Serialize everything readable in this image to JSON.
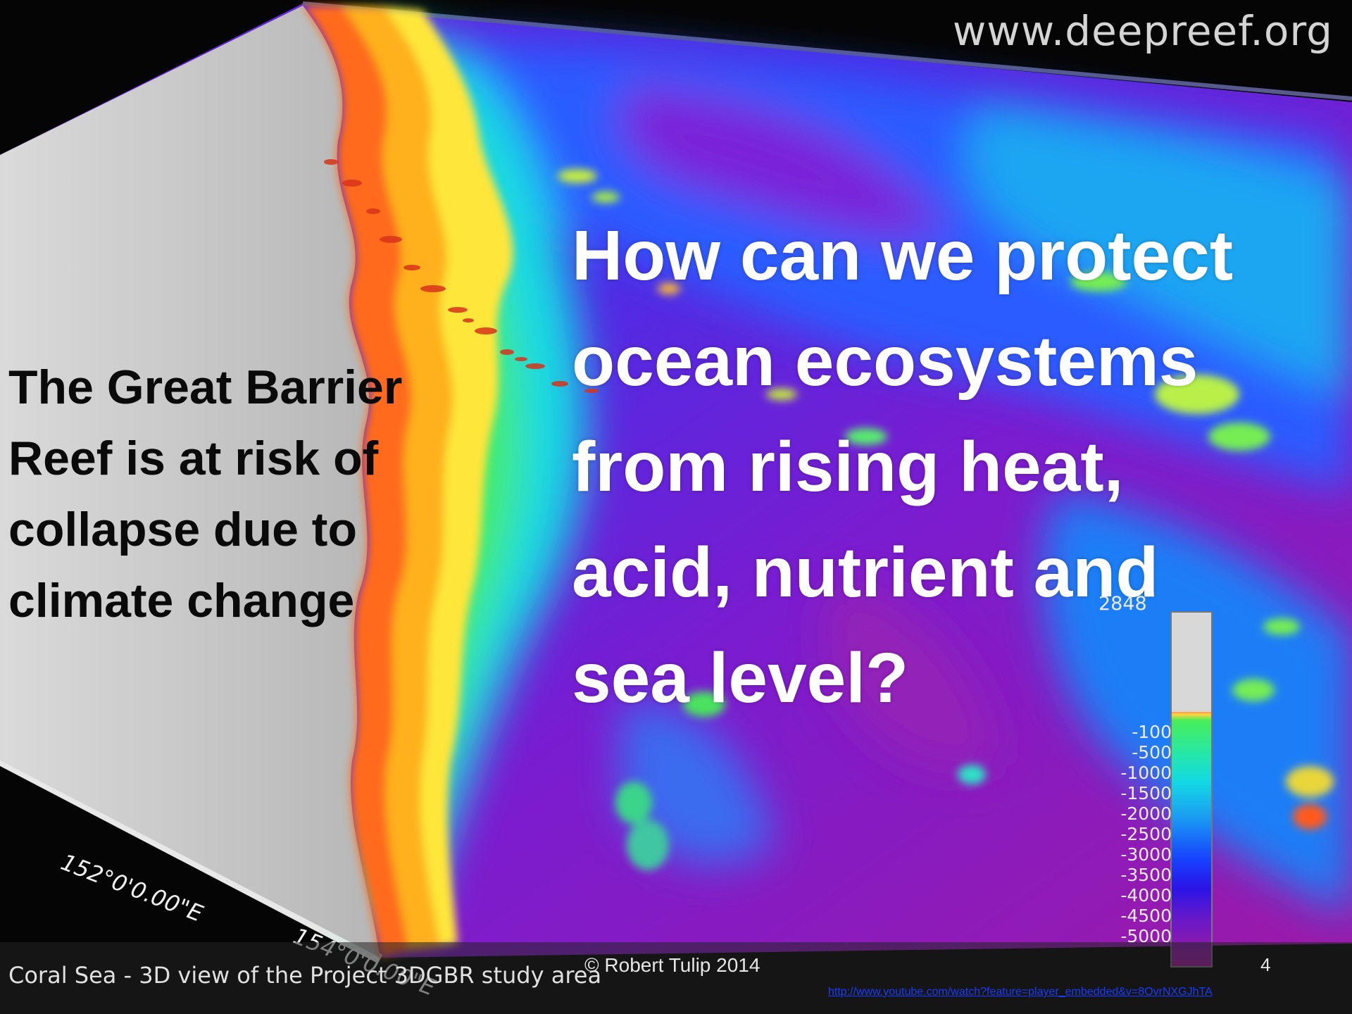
{
  "slide": {
    "watermark": "www.deepreef.org",
    "side_text_lines": [
      "The Great Barrier",
      "Reef is at risk of",
      "collapse due to",
      "climate change"
    ],
    "question_lines": [
      "How can we protect",
      "ocean ecosystems",
      "from rising heat,",
      "acid, nutrient and",
      "sea level?"
    ],
    "map": {
      "caption": "Coral Sea - 3D view of the Project 3DGBR study area",
      "longitude_labels": [
        "152°0'0.00\"E",
        "154°0'0.00\"E"
      ],
      "legend": {
        "top_value": "2848",
        "tick_labels": [
          "-100",
          "-500",
          "-1000",
          "-1500",
          "-2000",
          "-2500",
          "-3000",
          "-3500",
          "-4000",
          "-4500",
          "-5000"
        ]
      }
    },
    "footer": {
      "copyright": "© Robert Tulip 2014",
      "slide_number": "4",
      "link": "http://www.youtube.com/watch?feature=player_embedded&v=8OvrNXGJhTA"
    }
  },
  "colors": {
    "land": "#c9c9c9",
    "shallow": "#ff8a1f",
    "reef_yellow": "#ffe23a",
    "shelf_green": "#3fe86a",
    "slope_cyan": "#19d6e6",
    "deep_blue": "#1d4cff",
    "abyss_purple": "#7a1cd0",
    "question_text": "#ffffff",
    "side_text": "#0a0a0a",
    "link": "#1a3cff"
  }
}
